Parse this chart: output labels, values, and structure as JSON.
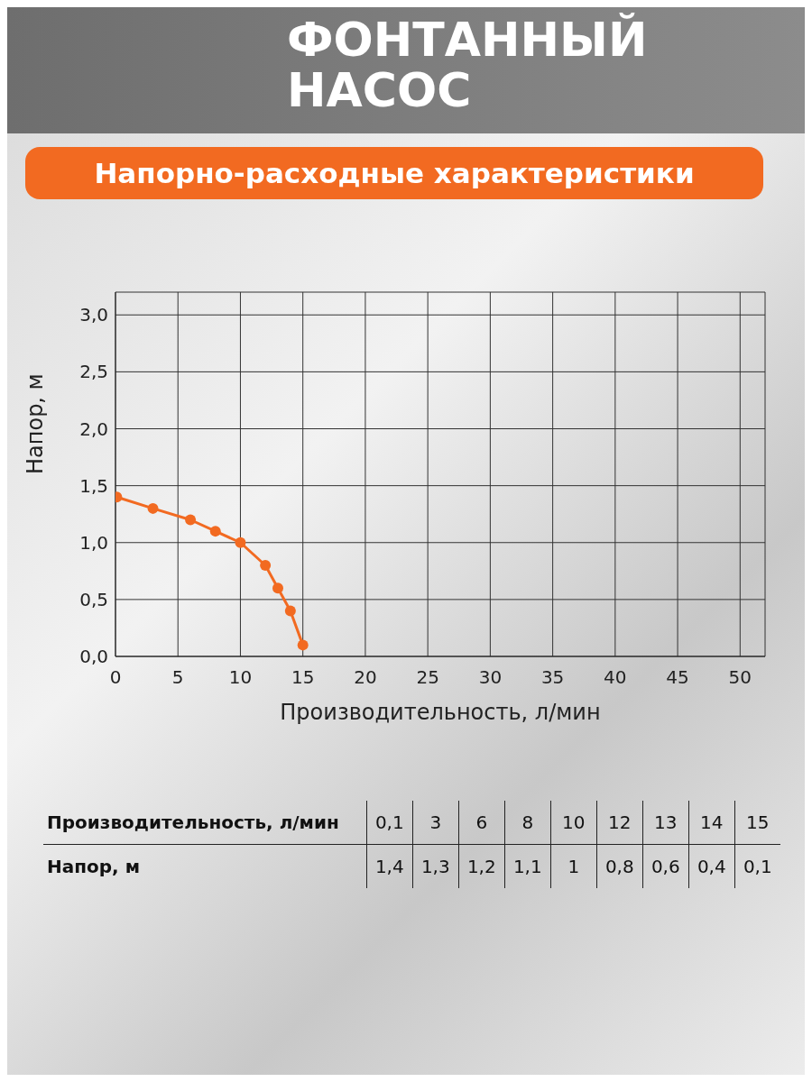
{
  "chart_data": {
    "type": "line",
    "title": "ФОНТАННЫЙ НАСОС",
    "subtitle": "Напорно-расходные характеристики",
    "xlabel": "Производительность, л/мин",
    "ylabel": "Напор, м",
    "x": [
      0.1,
      3,
      6,
      8,
      10,
      12,
      13,
      14,
      15
    ],
    "series": [
      {
        "color": "#f26a21",
        "values": [
          1.4,
          1.3,
          1.2,
          1.1,
          1,
          0.8,
          0.6,
          0.4,
          0.1
        ]
      }
    ],
    "annotations": [
      "0,1",
      "3",
      "6",
      "8",
      "10",
      "12",
      "13",
      "14",
      "15",
      "1,4",
      "1,3",
      "1,2",
      "1,1",
      "1",
      "0,8",
      "0,6",
      "0,4",
      "0,1"
    ],
    "xlim": [
      0,
      52
    ],
    "xticks": [
      0,
      5,
      10,
      15,
      20,
      25,
      30,
      35,
      40,
      45,
      50
    ],
    "ylim": [
      0,
      3.2
    ],
    "yticks": [
      {
        "value": 0,
        "label": "0,0"
      },
      {
        "value": 0.5,
        "label": "0,5"
      },
      {
        "value": 1,
        "label": "1,0"
      },
      {
        "value": 1.5,
        "label": "1,5"
      },
      {
        "value": 2,
        "label": "2,0"
      },
      {
        "value": 2.5,
        "label": "2,5"
      },
      {
        "value": 3,
        "label": "3,0"
      }
    ],
    "grid": true,
    "marker": "circle",
    "line_style": "solid"
  }
}
